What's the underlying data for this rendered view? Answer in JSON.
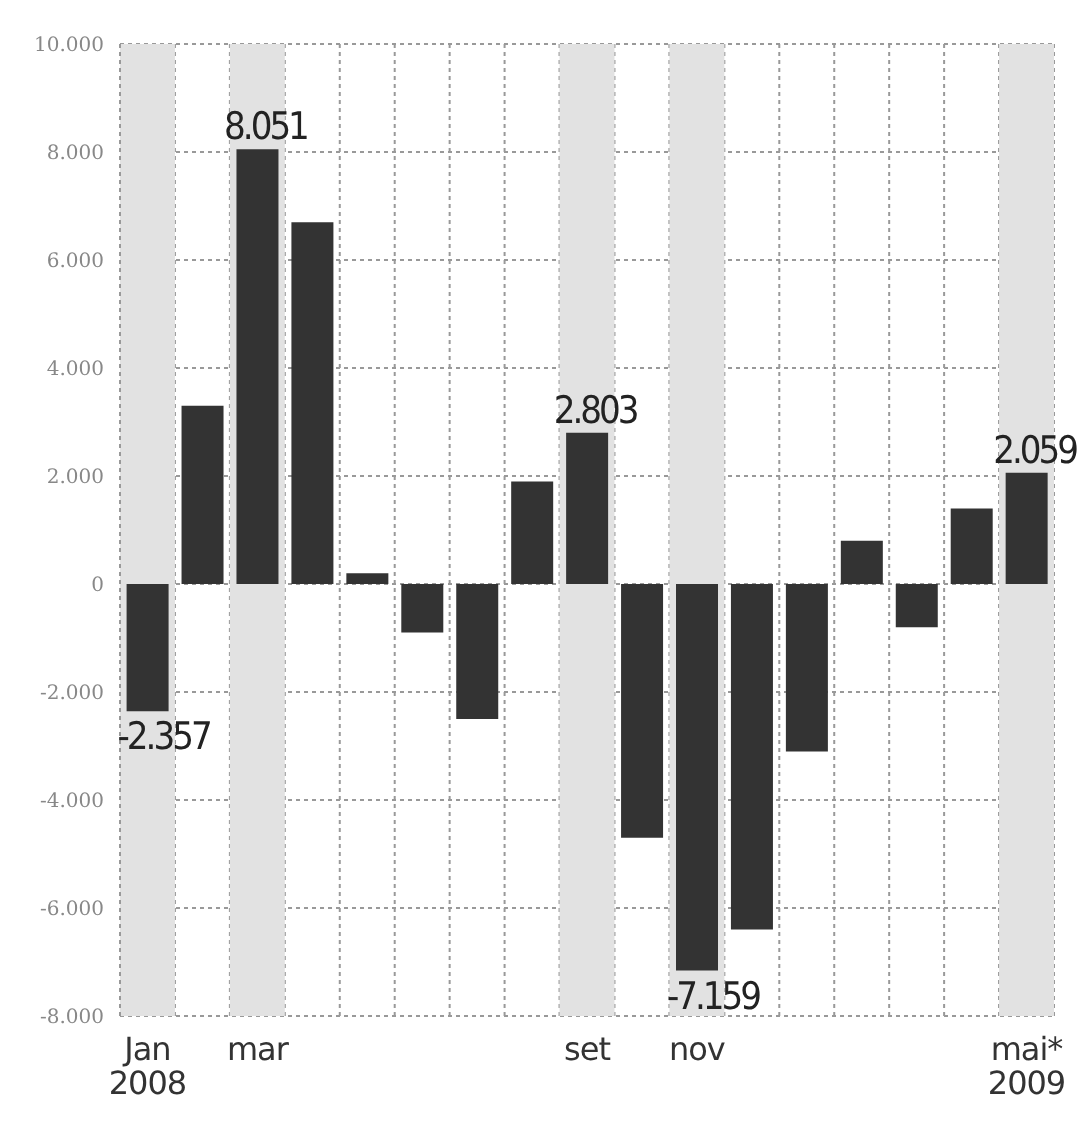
{
  "chart_data": {
    "type": "bar",
    "categories": [
      "Jan 2008",
      null,
      "mar",
      null,
      null,
      null,
      null,
      null,
      "set",
      null,
      "nov",
      null,
      null,
      null,
      null,
      null,
      "mai* 2009"
    ],
    "values": [
      -2357,
      3300,
      8051,
      6700,
      200,
      -900,
      -2500,
      1900,
      2803,
      -4700,
      -7159,
      -6400,
      -3100,
      800,
      -800,
      1400,
      2059
    ],
    "value_labels": [
      "-2.357",
      null,
      "8.051",
      null,
      null,
      null,
      null,
      null,
      "2.803",
      null,
      "-7.159",
      null,
      null,
      null,
      null,
      null,
      "2.059"
    ],
    "color": "#333333",
    "ylim": [
      -8000,
      10000
    ],
    "yticks": [
      {
        "value": -8000,
        "label": "-8.000"
      },
      {
        "value": -6000,
        "label": "-6.000"
      },
      {
        "value": -4000,
        "label": "-4.000"
      },
      {
        "value": -2000,
        "label": "-2.000"
      },
      0,
      {
        "value": 2000,
        "label": "2.000"
      },
      {
        "value": 4000,
        "label": "4.000"
      },
      {
        "value": 6000,
        "label": "6.000"
      },
      {
        "value": 8000,
        "label": "8.000"
      },
      {
        "value": 10000,
        "label": "10.000"
      }
    ],
    "grid": true,
    "bands": [
      {
        "axis": "x",
        "from": "Jan 2008",
        "to": "Jan 2008",
        "color": "#e2e2e2"
      },
      {
        "axis": "x",
        "from": "mar",
        "to": "mar",
        "color": "#e2e2e2"
      },
      {
        "axis": "x",
        "from": "set",
        "to": "set",
        "color": "#e2e2e2"
      },
      {
        "axis": "x",
        "from": "nov",
        "to": "nov",
        "color": "#e2e2e2"
      },
      {
        "axis": "x",
        "from": "mai* 2009",
        "to": "mai* 2009",
        "color": "#e2e2e2"
      }
    ]
  }
}
